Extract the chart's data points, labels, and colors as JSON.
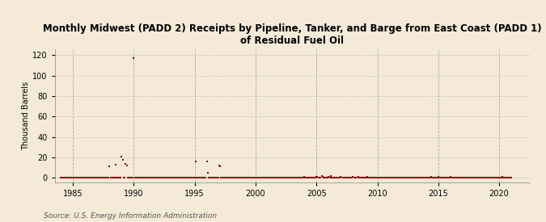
{
  "title": "Monthly Midwest (PADD 2) Receipts by Pipeline, Tanker, and Barge from East Coast (PADD 1)\nof Residual Fuel Oil",
  "ylabel": "Thousand Barrels",
  "source": "Source: U.S. Energy Information Administration",
  "background_color": "#f5ead8",
  "plot_background_color": "#f5ead8",
  "marker_color": "#8b0000",
  "ylim": [
    -4,
    126
  ],
  "yticks": [
    0,
    20,
    40,
    60,
    80,
    100,
    120
  ],
  "xlim": [
    1983.5,
    2022.5
  ],
  "xticks": [
    1985,
    1990,
    1995,
    2000,
    2005,
    2010,
    2015,
    2020
  ],
  "data_points": [
    [
      1984.0,
      0
    ],
    [
      1984.083,
      0
    ],
    [
      1984.167,
      0
    ],
    [
      1984.25,
      0
    ],
    [
      1984.333,
      0
    ],
    [
      1984.417,
      0
    ],
    [
      1984.5,
      0
    ],
    [
      1984.583,
      0
    ],
    [
      1984.667,
      0
    ],
    [
      1984.75,
      0
    ],
    [
      1984.833,
      0
    ],
    [
      1984.917,
      0
    ],
    [
      1985.0,
      0
    ],
    [
      1985.083,
      0
    ],
    [
      1985.167,
      0
    ],
    [
      1985.25,
      0
    ],
    [
      1985.333,
      0
    ],
    [
      1985.417,
      0
    ],
    [
      1985.5,
      0
    ],
    [
      1985.583,
      0
    ],
    [
      1985.667,
      0
    ],
    [
      1985.75,
      0
    ],
    [
      1985.833,
      0
    ],
    [
      1985.917,
      0
    ],
    [
      1986.0,
      0
    ],
    [
      1986.083,
      0
    ],
    [
      1986.167,
      0
    ],
    [
      1986.25,
      0
    ],
    [
      1986.333,
      0
    ],
    [
      1986.417,
      0
    ],
    [
      1986.5,
      0
    ],
    [
      1986.583,
      0
    ],
    [
      1986.667,
      0
    ],
    [
      1986.75,
      0
    ],
    [
      1986.833,
      0
    ],
    [
      1986.917,
      0
    ],
    [
      1987.0,
      0
    ],
    [
      1987.083,
      0
    ],
    [
      1987.167,
      0
    ],
    [
      1987.25,
      0
    ],
    [
      1987.333,
      0
    ],
    [
      1987.417,
      0
    ],
    [
      1987.5,
      0
    ],
    [
      1987.583,
      0
    ],
    [
      1987.667,
      0
    ],
    [
      1987.75,
      0
    ],
    [
      1987.833,
      0
    ],
    [
      1987.917,
      0
    ],
    [
      1988.0,
      11
    ],
    [
      1988.083,
      0
    ],
    [
      1988.167,
      0
    ],
    [
      1988.25,
      0
    ],
    [
      1988.333,
      0
    ],
    [
      1988.417,
      0
    ],
    [
      1988.5,
      13
    ],
    [
      1988.583,
      0
    ],
    [
      1988.667,
      0
    ],
    [
      1988.75,
      0
    ],
    [
      1988.833,
      0
    ],
    [
      1988.917,
      0
    ],
    [
      1989.0,
      21
    ],
    [
      1989.083,
      18
    ],
    [
      1989.167,
      0
    ],
    [
      1989.25,
      0
    ],
    [
      1989.333,
      14
    ],
    [
      1989.417,
      12
    ],
    [
      1989.5,
      0
    ],
    [
      1989.583,
      0
    ],
    [
      1989.667,
      0
    ],
    [
      1989.75,
      0
    ],
    [
      1989.833,
      0
    ],
    [
      1989.917,
      0
    ],
    [
      1990.0,
      117
    ],
    [
      1990.083,
      0
    ],
    [
      1990.167,
      0
    ],
    [
      1990.25,
      0
    ],
    [
      1990.333,
      0
    ],
    [
      1990.417,
      0
    ],
    [
      1990.5,
      0
    ],
    [
      1990.583,
      0
    ],
    [
      1990.667,
      0
    ],
    [
      1990.75,
      0
    ],
    [
      1990.833,
      0
    ],
    [
      1990.917,
      0
    ],
    [
      1991.0,
      0
    ],
    [
      1991.083,
      0
    ],
    [
      1991.167,
      0
    ],
    [
      1991.25,
      0
    ],
    [
      1991.333,
      0
    ],
    [
      1991.417,
      0
    ],
    [
      1991.5,
      0
    ],
    [
      1991.583,
      0
    ],
    [
      1991.667,
      0
    ],
    [
      1991.75,
      0
    ],
    [
      1991.833,
      0
    ],
    [
      1991.917,
      0
    ],
    [
      1992.0,
      0
    ],
    [
      1992.083,
      0
    ],
    [
      1992.167,
      0
    ],
    [
      1992.25,
      0
    ],
    [
      1992.333,
      0
    ],
    [
      1992.417,
      0
    ],
    [
      1992.5,
      0
    ],
    [
      1992.583,
      0
    ],
    [
      1992.667,
      0
    ],
    [
      1992.75,
      0
    ],
    [
      1992.833,
      0
    ],
    [
      1992.917,
      0
    ],
    [
      1993.0,
      0
    ],
    [
      1993.083,
      0
    ],
    [
      1993.167,
      0
    ],
    [
      1993.25,
      0
    ],
    [
      1993.333,
      0
    ],
    [
      1993.417,
      0
    ],
    [
      1993.5,
      0
    ],
    [
      1993.583,
      0
    ],
    [
      1993.667,
      0
    ],
    [
      1993.75,
      0
    ],
    [
      1993.833,
      0
    ],
    [
      1993.917,
      0
    ],
    [
      1994.0,
      0
    ],
    [
      1994.083,
      0
    ],
    [
      1994.167,
      0
    ],
    [
      1994.25,
      0
    ],
    [
      1994.333,
      0
    ],
    [
      1994.417,
      0
    ],
    [
      1994.5,
      0
    ],
    [
      1994.583,
      0
    ],
    [
      1994.667,
      0
    ],
    [
      1994.75,
      0
    ],
    [
      1994.833,
      0
    ],
    [
      1994.917,
      0
    ],
    [
      1995.0,
      0
    ],
    [
      1995.083,
      16
    ],
    [
      1995.167,
      0
    ],
    [
      1995.25,
      0
    ],
    [
      1995.333,
      0
    ],
    [
      1995.417,
      0
    ],
    [
      1995.5,
      0
    ],
    [
      1995.583,
      0
    ],
    [
      1995.667,
      0
    ],
    [
      1995.75,
      0
    ],
    [
      1995.833,
      0
    ],
    [
      1995.917,
      0
    ],
    [
      1996.0,
      16
    ],
    [
      1996.083,
      5
    ],
    [
      1996.167,
      0
    ],
    [
      1996.25,
      0
    ],
    [
      1996.333,
      0
    ],
    [
      1996.417,
      0
    ],
    [
      1996.5,
      0
    ],
    [
      1996.583,
      0
    ],
    [
      1996.667,
      0
    ],
    [
      1996.75,
      0
    ],
    [
      1996.833,
      0
    ],
    [
      1996.917,
      0
    ],
    [
      1997.0,
      12
    ],
    [
      1997.083,
      11
    ],
    [
      1997.167,
      0
    ],
    [
      1997.25,
      0
    ],
    [
      1997.333,
      0
    ],
    [
      1997.417,
      0
    ],
    [
      1997.5,
      0
    ],
    [
      1997.583,
      0
    ],
    [
      1997.667,
      0
    ],
    [
      1997.75,
      0
    ],
    [
      1997.833,
      0
    ],
    [
      1997.917,
      0
    ],
    [
      1998.0,
      0
    ],
    [
      1998.083,
      0
    ],
    [
      1998.167,
      0
    ],
    [
      1998.25,
      0
    ],
    [
      1998.333,
      0
    ],
    [
      1998.417,
      0
    ],
    [
      1998.5,
      0
    ],
    [
      1998.583,
      0
    ],
    [
      1998.667,
      0
    ],
    [
      1998.75,
      0
    ],
    [
      1998.833,
      0
    ],
    [
      1998.917,
      0
    ],
    [
      1999.0,
      0
    ],
    [
      1999.083,
      0
    ],
    [
      1999.167,
      0
    ],
    [
      1999.25,
      0
    ],
    [
      1999.333,
      0
    ],
    [
      1999.417,
      0
    ],
    [
      1999.5,
      0
    ],
    [
      1999.583,
      0
    ],
    [
      1999.667,
      0
    ],
    [
      1999.75,
      0
    ],
    [
      1999.833,
      0
    ],
    [
      1999.917,
      0
    ],
    [
      2000.0,
      0
    ],
    [
      2000.083,
      0
    ],
    [
      2000.167,
      0
    ],
    [
      2000.25,
      0
    ],
    [
      2000.333,
      0
    ],
    [
      2000.417,
      0
    ],
    [
      2000.5,
      0
    ],
    [
      2000.583,
      0
    ],
    [
      2000.667,
      0
    ],
    [
      2000.75,
      0
    ],
    [
      2000.833,
      0
    ],
    [
      2000.917,
      0
    ],
    [
      2001.0,
      0
    ],
    [
      2001.083,
      0
    ],
    [
      2001.167,
      0
    ],
    [
      2001.25,
      0
    ],
    [
      2001.333,
      0
    ],
    [
      2001.417,
      0
    ],
    [
      2001.5,
      0
    ],
    [
      2001.583,
      0
    ],
    [
      2001.667,
      0
    ],
    [
      2001.75,
      0
    ],
    [
      2001.833,
      0
    ],
    [
      2001.917,
      0
    ],
    [
      2002.0,
      0
    ],
    [
      2002.083,
      0
    ],
    [
      2002.167,
      0
    ],
    [
      2002.25,
      0
    ],
    [
      2002.333,
      0
    ],
    [
      2002.417,
      0
    ],
    [
      2002.5,
      0
    ],
    [
      2002.583,
      0
    ],
    [
      2002.667,
      0
    ],
    [
      2002.75,
      0
    ],
    [
      2002.833,
      0
    ],
    [
      2002.917,
      0
    ],
    [
      2003.0,
      0
    ],
    [
      2003.083,
      0
    ],
    [
      2003.167,
      0
    ],
    [
      2003.25,
      0
    ],
    [
      2003.333,
      0
    ],
    [
      2003.417,
      0
    ],
    [
      2003.5,
      0
    ],
    [
      2003.583,
      0
    ],
    [
      2003.667,
      0
    ],
    [
      2003.75,
      0
    ],
    [
      2003.833,
      0
    ],
    [
      2003.917,
      0
    ],
    [
      2004.0,
      1
    ],
    [
      2004.083,
      0
    ],
    [
      2004.167,
      0
    ],
    [
      2004.25,
      0
    ],
    [
      2004.333,
      0
    ],
    [
      2004.417,
      0
    ],
    [
      2004.5,
      0
    ],
    [
      2004.583,
      0
    ],
    [
      2004.667,
      0
    ],
    [
      2004.75,
      0
    ],
    [
      2004.833,
      0
    ],
    [
      2004.917,
      0
    ],
    [
      2005.0,
      1
    ],
    [
      2005.083,
      1
    ],
    [
      2005.167,
      0
    ],
    [
      2005.25,
      0
    ],
    [
      2005.333,
      0
    ],
    [
      2005.417,
      2
    ],
    [
      2005.5,
      1
    ],
    [
      2005.583,
      0
    ],
    [
      2005.667,
      0
    ],
    [
      2005.75,
      0
    ],
    [
      2005.833,
      0
    ],
    [
      2005.917,
      0
    ],
    [
      2006.0,
      1
    ],
    [
      2006.083,
      0
    ],
    [
      2006.167,
      2
    ],
    [
      2006.25,
      0
    ],
    [
      2006.333,
      0
    ],
    [
      2006.417,
      0
    ],
    [
      2006.5,
      0
    ],
    [
      2006.583,
      0
    ],
    [
      2006.667,
      0
    ],
    [
      2006.75,
      0
    ],
    [
      2006.833,
      0
    ],
    [
      2006.917,
      0
    ],
    [
      2007.0,
      1
    ],
    [
      2007.083,
      0
    ],
    [
      2007.167,
      0
    ],
    [
      2007.25,
      0
    ],
    [
      2007.333,
      0
    ],
    [
      2007.417,
      0
    ],
    [
      2007.5,
      0
    ],
    [
      2007.583,
      0
    ],
    [
      2007.667,
      0
    ],
    [
      2007.75,
      0
    ],
    [
      2007.833,
      0
    ],
    [
      2007.917,
      0
    ],
    [
      2008.0,
      1
    ],
    [
      2008.083,
      0
    ],
    [
      2008.167,
      0
    ],
    [
      2008.25,
      0
    ],
    [
      2008.333,
      0
    ],
    [
      2008.417,
      1
    ],
    [
      2008.5,
      0
    ],
    [
      2008.583,
      0
    ],
    [
      2008.667,
      0
    ],
    [
      2008.75,
      0
    ],
    [
      2008.833,
      0
    ],
    [
      2008.917,
      0
    ],
    [
      2009.0,
      0
    ],
    [
      2009.083,
      0
    ],
    [
      2009.167,
      1
    ],
    [
      2009.25,
      0
    ],
    [
      2009.333,
      0
    ],
    [
      2009.417,
      0
    ],
    [
      2009.5,
      0
    ],
    [
      2009.583,
      0
    ],
    [
      2009.667,
      0
    ],
    [
      2009.75,
      0
    ],
    [
      2009.833,
      0
    ],
    [
      2009.917,
      0
    ],
    [
      2010.0,
      0
    ],
    [
      2010.083,
      0
    ],
    [
      2010.167,
      0
    ],
    [
      2010.25,
      0
    ],
    [
      2010.333,
      0
    ],
    [
      2010.417,
      0
    ],
    [
      2010.5,
      0
    ],
    [
      2010.583,
      0
    ],
    [
      2010.667,
      0
    ],
    [
      2010.75,
      0
    ],
    [
      2010.833,
      0
    ],
    [
      2010.917,
      0
    ],
    [
      2011.0,
      0
    ],
    [
      2011.083,
      0
    ],
    [
      2011.167,
      0
    ],
    [
      2011.25,
      0
    ],
    [
      2011.333,
      0
    ],
    [
      2011.417,
      0
    ],
    [
      2011.5,
      0
    ],
    [
      2011.583,
      0
    ],
    [
      2011.667,
      0
    ],
    [
      2011.75,
      0
    ],
    [
      2011.833,
      0
    ],
    [
      2011.917,
      0
    ],
    [
      2012.0,
      0
    ],
    [
      2012.083,
      0
    ],
    [
      2012.167,
      0
    ],
    [
      2012.25,
      0
    ],
    [
      2012.333,
      0
    ],
    [
      2012.417,
      0
    ],
    [
      2012.5,
      0
    ],
    [
      2012.583,
      0
    ],
    [
      2012.667,
      0
    ],
    [
      2012.75,
      0
    ],
    [
      2012.833,
      0
    ],
    [
      2012.917,
      0
    ],
    [
      2013.0,
      0
    ],
    [
      2013.083,
      0
    ],
    [
      2013.167,
      0
    ],
    [
      2013.25,
      0
    ],
    [
      2013.333,
      0
    ],
    [
      2013.417,
      0
    ],
    [
      2013.5,
      0
    ],
    [
      2013.583,
      0
    ],
    [
      2013.667,
      0
    ],
    [
      2013.75,
      0
    ],
    [
      2013.833,
      0
    ],
    [
      2013.917,
      0
    ],
    [
      2014.0,
      0
    ],
    [
      2014.083,
      0
    ],
    [
      2014.167,
      0
    ],
    [
      2014.25,
      0
    ],
    [
      2014.333,
      0
    ],
    [
      2014.417,
      1
    ],
    [
      2014.5,
      0
    ],
    [
      2014.583,
      0
    ],
    [
      2014.667,
      0
    ],
    [
      2014.75,
      0
    ],
    [
      2014.833,
      0
    ],
    [
      2014.917,
      0
    ],
    [
      2015.0,
      1
    ],
    [
      2015.083,
      0
    ],
    [
      2015.167,
      0
    ],
    [
      2015.25,
      0
    ],
    [
      2015.333,
      0
    ],
    [
      2015.417,
      0
    ],
    [
      2015.5,
      0
    ],
    [
      2015.583,
      0
    ],
    [
      2015.667,
      0
    ],
    [
      2015.75,
      0
    ],
    [
      2015.833,
      0
    ],
    [
      2015.917,
      0
    ],
    [
      2016.0,
      1
    ],
    [
      2016.083,
      0
    ],
    [
      2016.167,
      0
    ],
    [
      2016.25,
      0
    ],
    [
      2016.333,
      0
    ],
    [
      2016.417,
      0
    ],
    [
      2016.5,
      0
    ],
    [
      2016.583,
      0
    ],
    [
      2016.667,
      0
    ],
    [
      2016.75,
      0
    ],
    [
      2016.833,
      0
    ],
    [
      2016.917,
      0
    ],
    [
      2017.0,
      0
    ],
    [
      2017.083,
      0
    ],
    [
      2017.167,
      0
    ],
    [
      2017.25,
      0
    ],
    [
      2017.333,
      0
    ],
    [
      2017.417,
      0
    ],
    [
      2017.5,
      0
    ],
    [
      2017.583,
      0
    ],
    [
      2017.667,
      0
    ],
    [
      2017.75,
      0
    ],
    [
      2017.833,
      0
    ],
    [
      2017.917,
      0
    ],
    [
      2018.0,
      0
    ],
    [
      2018.083,
      0
    ],
    [
      2018.167,
      0
    ],
    [
      2018.25,
      0
    ],
    [
      2018.333,
      0
    ],
    [
      2018.417,
      0
    ],
    [
      2018.5,
      0
    ],
    [
      2018.583,
      0
    ],
    [
      2018.667,
      0
    ],
    [
      2018.75,
      0
    ],
    [
      2018.833,
      0
    ],
    [
      2018.917,
      0
    ],
    [
      2019.0,
      0
    ],
    [
      2019.083,
      0
    ],
    [
      2019.167,
      0
    ],
    [
      2019.25,
      0
    ],
    [
      2019.333,
      0
    ],
    [
      2019.417,
      0
    ],
    [
      2019.5,
      0
    ],
    [
      2019.583,
      0
    ],
    [
      2019.667,
      0
    ],
    [
      2019.75,
      0
    ],
    [
      2019.833,
      0
    ],
    [
      2019.917,
      0
    ],
    [
      2020.0,
      0
    ],
    [
      2020.083,
      0
    ],
    [
      2020.167,
      0
    ],
    [
      2020.25,
      1
    ],
    [
      2020.333,
      0
    ],
    [
      2020.417,
      0
    ],
    [
      2020.5,
      0
    ],
    [
      2020.583,
      0
    ],
    [
      2020.667,
      0
    ],
    [
      2020.75,
      0
    ],
    [
      2020.833,
      0
    ],
    [
      2020.917,
      0
    ],
    [
      2021.0,
      0
    ]
  ]
}
